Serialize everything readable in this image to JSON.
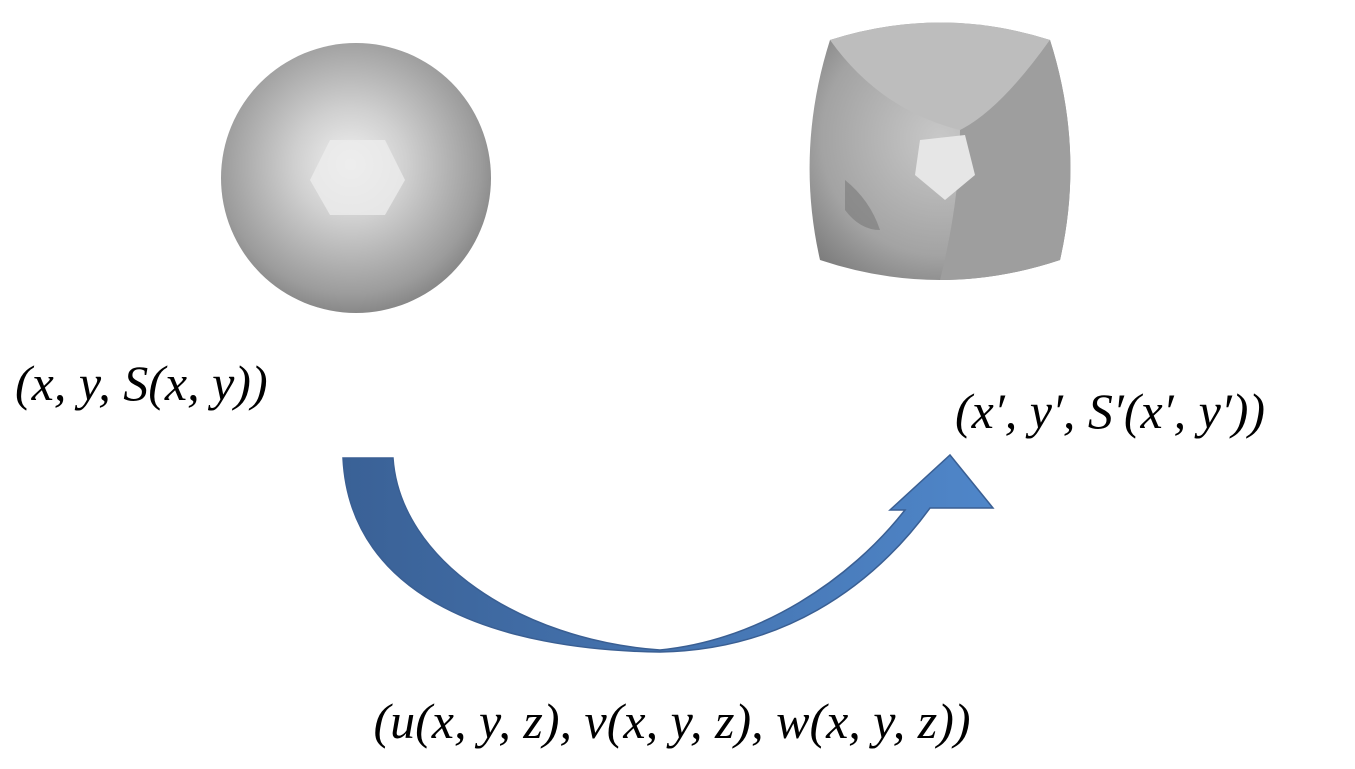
{
  "labels": {
    "source": "(x, y, S(x, y))",
    "target": "(x′, y′, S′(x′, y′))",
    "mapping": "(u(x, y, z), v(x, y, z), w(x, y, z))"
  }
}
